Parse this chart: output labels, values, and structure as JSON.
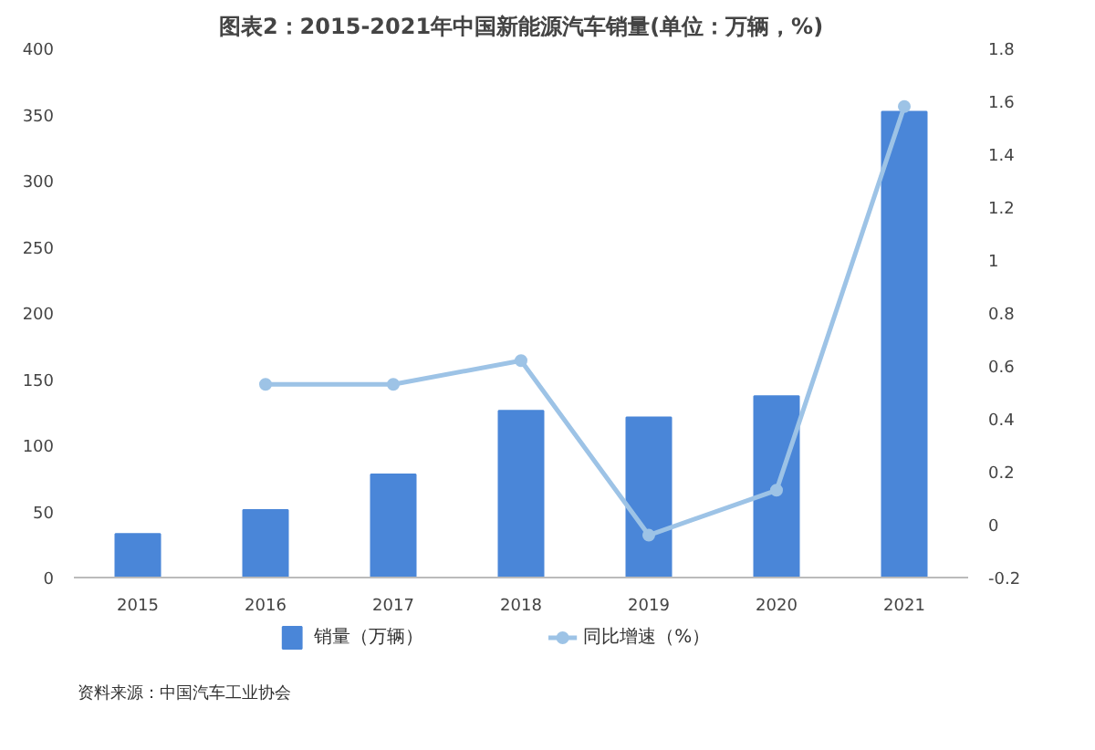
{
  "chart_data": {
    "type": "bar",
    "title": "图表2：2015-2021年中国新能源汽车销量(单位：万辆，%)",
    "categories": [
      "2015",
      "2016",
      "2017",
      "2018",
      "2019",
      "2020",
      "2021"
    ],
    "series": [
      {
        "name": "销量（万辆）",
        "color": "#4a86d8",
        "values": [
          33,
          51,
          78,
          126,
          121,
          137,
          352
        ]
      },
      {
        "name": "同比增速（%）",
        "type": "line",
        "axis": "y2",
        "color": "#9dc3e6",
        "marker": "circle",
        "values": [
          null,
          0.53,
          0.53,
          0.62,
          -0.04,
          0.13,
          1.58
        ]
      }
    ],
    "ylim": [
      0,
      400
    ],
    "yticks": [
      0,
      50,
      100,
      150,
      200,
      250,
      300,
      350,
      400
    ],
    "y2lim": [
      -0.2,
      1.8
    ],
    "y2ticks": [
      -0.2,
      0,
      0.2,
      0.4,
      0.6,
      0.8,
      1,
      1.2,
      1.4,
      1.6,
      1.8
    ],
    "grid": false,
    "legend": "bottom",
    "annotations": [
      "资料来源：中国汽车工业协会"
    ]
  }
}
